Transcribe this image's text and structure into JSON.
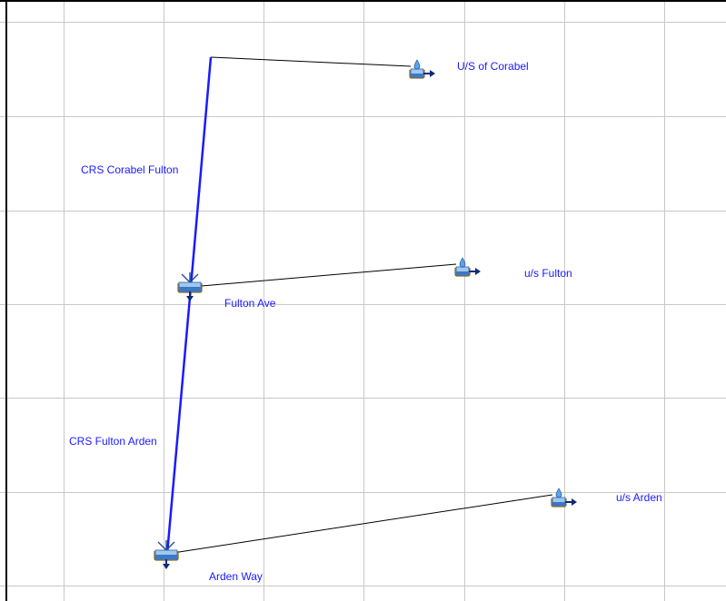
{
  "diagram": {
    "colors": {
      "background": "#ffffff",
      "grid": "#c8c8c8",
      "reach_line": "#1a1aff",
      "connector_line": "#000000",
      "label_text": "#1a1aff",
      "frame": "#000000"
    },
    "reaches": [
      {
        "id": "reach-corabel-fulton",
        "label": "CRS Corabel Fulton"
      },
      {
        "id": "reach-fulton-arden",
        "label": "CRS Fulton Arden"
      }
    ],
    "subbasins": [
      {
        "id": "subbasin-us-corabel",
        "label": "U/S of Corabel",
        "icon": "subbasin-icon"
      },
      {
        "id": "subbasin-us-fulton",
        "label": "u/s Fulton",
        "icon": "subbasin-icon"
      },
      {
        "id": "subbasin-us-arden",
        "label": "u/s Arden",
        "icon": "subbasin-icon"
      }
    ],
    "junctions": [
      {
        "id": "junction-fulton-ave",
        "label": "Fulton Ave",
        "icon": "junction-icon"
      },
      {
        "id": "junction-arden-way",
        "label": "Arden Way",
        "icon": "junction-icon"
      }
    ]
  }
}
